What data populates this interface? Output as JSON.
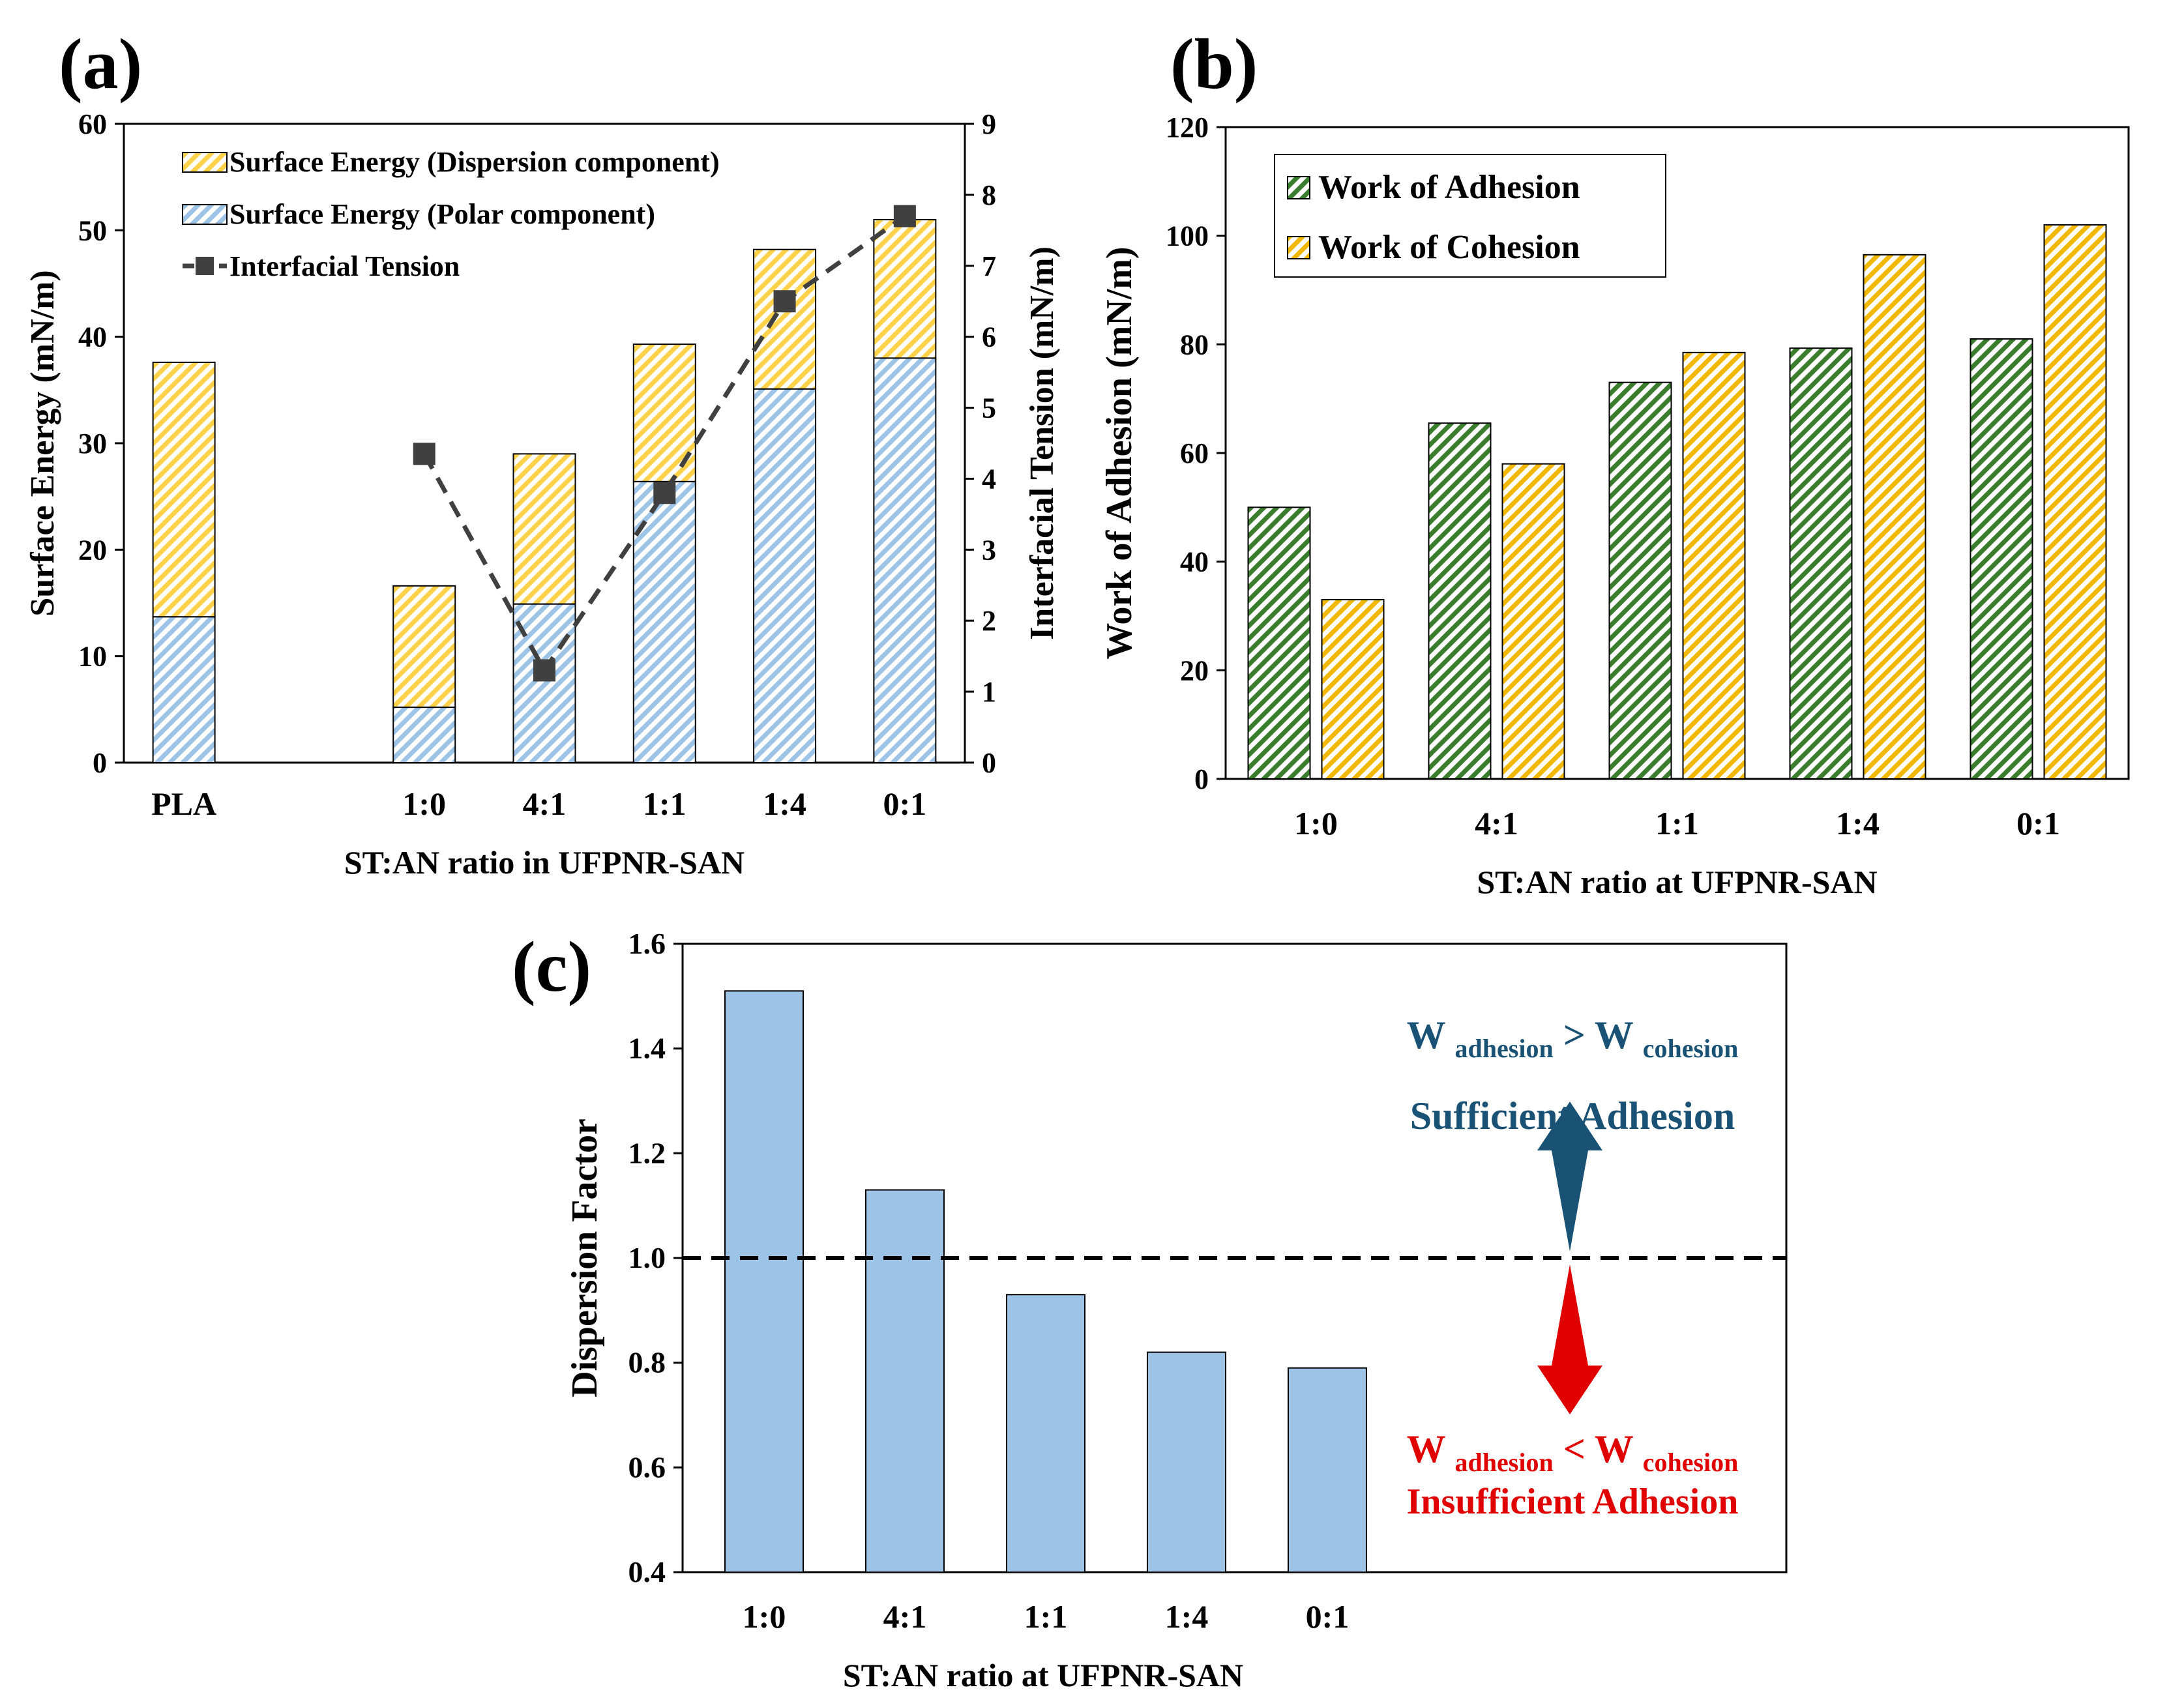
{
  "chart_data": [
    {
      "panel": "(a)",
      "type": "bar",
      "stacked": true,
      "categories": [
        "PLA",
        "",
        "1:0",
        "4:1",
        "1:1",
        "1:4",
        "0:1"
      ],
      "xlabel": "ST:AN ratio in UFPNR-SAN",
      "ylabel": "Surface Energy (mN/m)",
      "ylim": [
        0,
        60
      ],
      "yticks": [
        "0",
        "10",
        "20",
        "30",
        "40",
        "50",
        "60"
      ],
      "y2label": "Interfacial Tension (mN/m)",
      "y2lim": [
        0,
        9
      ],
      "y2ticks": [
        "0",
        "1",
        "2",
        "3",
        "4",
        "5",
        "6",
        "7",
        "8",
        "9"
      ],
      "series": [
        {
          "name": "Surface Energy (Polar component)",
          "values": [
            13.7,
            null,
            5.2,
            14.9,
            26.4,
            35.1,
            38.0
          ],
          "color": "#9dc3e6"
        },
        {
          "name": "Surface Energy (Dispersion component)",
          "values": [
            23.9,
            null,
            11.4,
            14.1,
            12.9,
            13.1,
            13.0
          ],
          "color": "#ffd24a"
        },
        {
          "name": "Interfacial Tension",
          "type": "line",
          "axis": "y2",
          "values": [
            null,
            null,
            4.35,
            1.3,
            3.8,
            6.5,
            7.7
          ],
          "color": "#404040"
        }
      ],
      "legend": [
        "Surface Energy (Dispersion component)",
        "Surface Energy (Polar component)",
        "Interfacial Tension"
      ]
    },
    {
      "panel": "(b)",
      "type": "bar",
      "categories": [
        "1:0",
        "4:1",
        "1:1",
        "1:4",
        "0:1"
      ],
      "xlabel": "ST:AN ratio at UFPNR-SAN",
      "ylabel": "Work of Adhesion (mN/m)",
      "ylim": [
        0,
        120
      ],
      "yticks": [
        "0",
        "20",
        "40",
        "60",
        "80",
        "100",
        "120"
      ],
      "series": [
        {
          "name": "Work of Adhesion",
          "values": [
            50.0,
            65.5,
            73.0,
            79.3,
            81.0
          ],
          "color": "#3a7d2c"
        },
        {
          "name": "Work of Cohesion",
          "values": [
            33.0,
            58.0,
            78.5,
            96.5,
            102.0
          ],
          "color": "#ffd24a"
        }
      ],
      "legend": [
        "Work of Adhesion",
        "Work of Cohesion"
      ]
    },
    {
      "panel": "(c)",
      "type": "bar",
      "categories": [
        "1:0",
        "4:1",
        "1:1",
        "1:4",
        "0:1"
      ],
      "values": [
        1.51,
        1.13,
        0.93,
        0.82,
        0.79
      ],
      "color": "#9dc3e6",
      "xlabel": "ST:AN ratio at UFPNR-SAN",
      "ylabel": "Dispersion Factor",
      "ylim": [
        0.4,
        1.6
      ],
      "yticks": [
        "0.4",
        "0.6",
        "0.8",
        "1.0",
        "1.2",
        "1.4",
        "1.6"
      ],
      "reference_line": 1.0,
      "annotations": {
        "upper_w": "W",
        "upper_sub1": "adhesion",
        "upper_op": ">",
        "upper_sub2": "cohesion",
        "upper_label": "Sufficient Adhesion",
        "upper_color": "#1a5276",
        "lower_w": "W",
        "lower_sub1": "adhesion",
        "lower_op": "<",
        "lower_sub2": "cohesion",
        "lower_label": "Insufficient Adhesion",
        "lower_color": "#e00000"
      }
    }
  ]
}
